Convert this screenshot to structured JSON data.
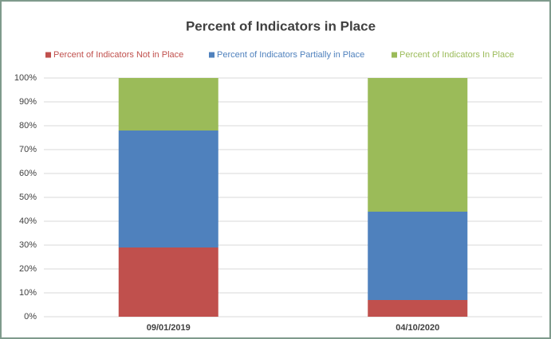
{
  "chart_data": {
    "type": "stacked_bar",
    "title": "Percent of Indicators in Place",
    "categories": [
      "09/01/2019",
      "04/10/2020"
    ],
    "series": [
      {
        "name": "Percent of Indicators Not in Place",
        "color": "#c0504d",
        "values": [
          29,
          7
        ]
      },
      {
        "name": "Percent of Indicators Partially in Place",
        "color": "#4f81bd",
        "values": [
          49,
          37
        ]
      },
      {
        "name": "Percent of Indicators In Place",
        "color": "#9bbb59",
        "values": [
          22,
          56
        ]
      }
    ],
    "ylim": [
      0,
      100
    ],
    "yticks": [
      {
        "value": 0,
        "label": "0%"
      },
      {
        "value": 10,
        "label": "10%"
      },
      {
        "value": 20,
        "label": "20%"
      },
      {
        "value": 30,
        "label": "30%"
      },
      {
        "value": 40,
        "label": "40%"
      },
      {
        "value": 50,
        "label": "50%"
      },
      {
        "value": 60,
        "label": "60%"
      },
      {
        "value": 70,
        "label": "70%"
      },
      {
        "value": 80,
        "label": "80%"
      },
      {
        "value": 90,
        "label": "90%"
      },
      {
        "value": 100,
        "label": "100%"
      }
    ],
    "grid": true,
    "legend": "top"
  }
}
